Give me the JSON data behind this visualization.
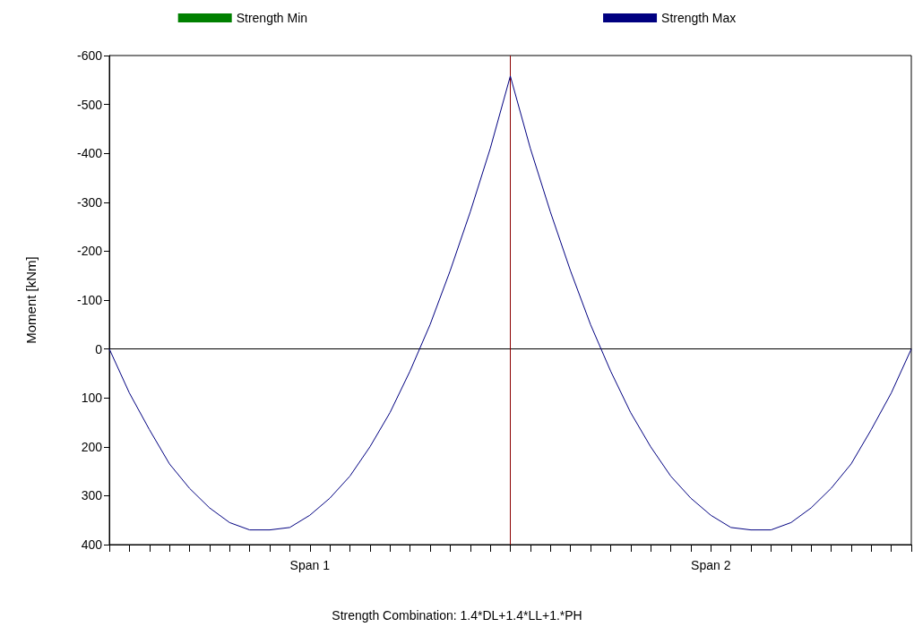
{
  "chart_data": {
    "type": "line",
    "ylabel": "Moment [kNm]",
    "annotations": [
      "Strength Combination: 1.4*DL+1.4*LL+1.*PH"
    ],
    "categories": [
      null,
      null,
      null,
      null,
      null,
      null,
      null,
      null,
      null,
      null,
      "Span 1",
      null,
      null,
      null,
      null,
      null,
      null,
      null,
      null,
      null,
      null,
      null,
      null,
      null,
      null,
      null,
      null,
      null,
      null,
      null,
      "Span 2",
      null,
      null,
      null,
      null,
      null,
      null,
      null,
      null,
      null,
      null
    ],
    "series": [
      {
        "name": "Strength Min",
        "color": "#008000",
        "values": [
          null,
          null,
          null,
          null,
          null,
          null,
          null,
          null,
          null,
          null,
          null,
          null,
          null,
          null,
          null,
          null,
          null,
          null,
          null,
          null,
          null,
          null,
          null,
          null,
          null,
          null,
          null,
          null,
          null,
          null,
          null,
          null,
          null,
          null,
          null,
          null,
          null,
          null,
          null,
          null,
          null
        ]
      },
      {
        "name": "Strength Max",
        "color": "#000080",
        "values": [
          0,
          90,
          165,
          235,
          285,
          325,
          355,
          370,
          370,
          365,
          340,
          305,
          260,
          200,
          130,
          45,
          -50,
          -160,
          -280,
          -410,
          -558,
          -410,
          -280,
          -160,
          -50,
          45,
          130,
          200,
          260,
          305,
          340,
          365,
          370,
          370,
          355,
          325,
          285,
          235,
          165,
          90,
          0
        ]
      }
    ],
    "ylim": [
      400,
      -600
    ],
    "yticks": [
      -600,
      -500,
      -400,
      -300,
      -200,
      -100,
      0,
      100,
      200,
      300,
      400
    ],
    "ref_lines": [
      {
        "axis": "y",
        "value": 0,
        "color": "#000000"
      }
    ],
    "legend": "top",
    "grid": false,
    "marker": "none",
    "line_style": "solid"
  }
}
